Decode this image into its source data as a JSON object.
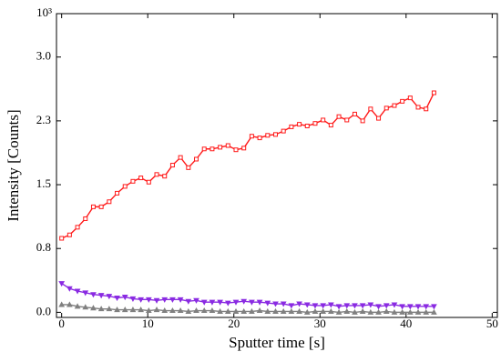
{
  "chart_data": {
    "type": "line",
    "x_label": "Sputter time [s]",
    "y_label": "Intensity [Counts]",
    "y_scale_label": "10³",
    "x": [
      0,
      0.92,
      1.84,
      2.76,
      3.68,
      4.6,
      5.52,
      6.44,
      7.36,
      8.28,
      9.2,
      10.12,
      11.04,
      11.96,
      12.88,
      13.8,
      14.72,
      15.64,
      16.56,
      17.48,
      18.4,
      19.32,
      20.24,
      21.16,
      22.08,
      23,
      23.92,
      24.84,
      25.76,
      26.68,
      27.6,
      28.52,
      29.44,
      30.36,
      31.28,
      32.2,
      33.12,
      34.04,
      34.96,
      35.88,
      36.8,
      37.72,
      38.64,
      39.56,
      40.48,
      41.4,
      42.32,
      43.24
    ],
    "series": [
      {
        "color": "#ff1a1a",
        "marker": "square",
        "values": [
          0.87,
          0.91,
          1.0,
          1.1,
          1.24,
          1.24,
          1.3,
          1.4,
          1.48,
          1.54,
          1.58,
          1.53,
          1.62,
          1.6,
          1.73,
          1.82,
          1.7,
          1.8,
          1.92,
          1.92,
          1.94,
          1.96,
          1.91,
          1.93,
          2.07,
          2.05,
          2.08,
          2.09,
          2.13,
          2.18,
          2.21,
          2.19,
          2.22,
          2.26,
          2.2,
          2.3,
          2.26,
          2.33,
          2.25,
          2.39,
          2.28,
          2.4,
          2.43,
          2.48,
          2.52,
          2.41,
          2.39,
          2.58
        ]
      },
      {
        "color": "#8a2be2",
        "marker": "triangle-down",
        "values": [
          0.34,
          0.28,
          0.25,
          0.23,
          0.21,
          0.2,
          0.19,
          0.17,
          0.18,
          0.16,
          0.15,
          0.15,
          0.14,
          0.15,
          0.15,
          0.15,
          0.13,
          0.14,
          0.12,
          0.12,
          0.12,
          0.11,
          0.12,
          0.13,
          0.12,
          0.12,
          0.11,
          0.1,
          0.1,
          0.08,
          0.1,
          0.09,
          0.08,
          0.08,
          0.09,
          0.07,
          0.08,
          0.08,
          0.08,
          0.09,
          0.07,
          0.08,
          0.09,
          0.07,
          0.07,
          0.07,
          0.07,
          0.07
        ]
      },
      {
        "color": "#808080",
        "marker": "triangle-up",
        "values": [
          0.09,
          0.09,
          0.07,
          0.06,
          0.05,
          0.04,
          0.04,
          0.03,
          0.03,
          0.03,
          0.03,
          0.02,
          0.03,
          0.02,
          0.02,
          0.02,
          0.01,
          0.02,
          0.02,
          0.02,
          0.01,
          0.01,
          0.01,
          0.01,
          0.01,
          0.02,
          0.01,
          0.01,
          0.01,
          0.01,
          0.01,
          0.0,
          0.01,
          0.01,
          0.01,
          0.0,
          0.01,
          0.0,
          0.01,
          0.0,
          0.0,
          0.01,
          0.0,
          0.0,
          0.0,
          0.0,
          0.0,
          0.0
        ]
      }
    ],
    "xlim": [
      -0.6,
      50.6
    ],
    "xticks": [
      0,
      10,
      20,
      30,
      40,
      50
    ],
    "ylim": [
      -0.06,
      3.51
    ],
    "yticks": [
      {
        "value": 0,
        "label": "0.0"
      },
      {
        "value": 0.75,
        "label": "0.8"
      },
      {
        "value": 1.5,
        "label": "1.5"
      },
      {
        "value": 2.25,
        "label": "2.3"
      },
      {
        "value": 3.0,
        "label": "3.0"
      }
    ]
  }
}
